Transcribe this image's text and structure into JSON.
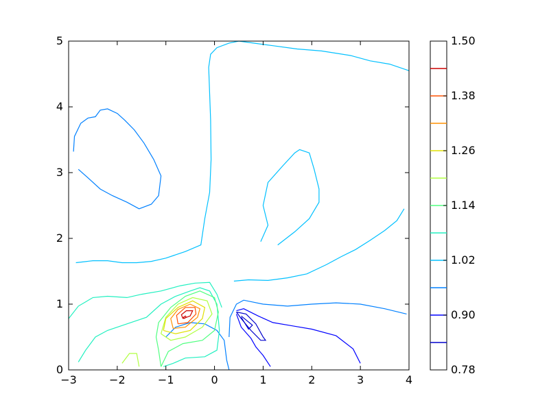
{
  "chart_data": {
    "type": "contour",
    "title": "",
    "xlabel": "",
    "ylabel": "",
    "xlim": [
      -3,
      4
    ],
    "ylim": [
      0,
      5
    ],
    "x_ticks": [
      -3,
      -2,
      -1,
      0,
      1,
      2,
      3,
      4
    ],
    "x_tick_labels": [
      "−3",
      "−2",
      "−1",
      "0",
      "1",
      "2",
      "3",
      "4"
    ],
    "y_ticks": [
      0,
      1,
      2,
      3,
      4,
      5
    ],
    "y_tick_labels": [
      "0",
      "1",
      "2",
      "3",
      "4",
      "5"
    ],
    "grid": false,
    "colormap": "jet",
    "colorbar": {
      "range": [
        0.78,
        1.5
      ],
      "tick_values": [
        0.78,
        0.9,
        1.02,
        1.14,
        1.26,
        1.38,
        1.5
      ],
      "tick_labels": [
        "0.78",
        "0.90",
        "1.02",
        "1.14",
        "1.26",
        "1.38",
        "1.50"
      ],
      "level_lines": [
        {
          "value": 0.84,
          "color": "#0000cc"
        },
        {
          "value": 0.9,
          "color": "#0000ff"
        },
        {
          "value": 0.96,
          "color": "#0080ff"
        },
        {
          "value": 1.02,
          "color": "#00c0ff"
        },
        {
          "value": 1.08,
          "color": "#20f0c0"
        },
        {
          "value": 1.14,
          "color": "#50ff80"
        },
        {
          "value": 1.2,
          "color": "#b0ff40"
        },
        {
          "value": 1.26,
          "color": "#e0e000"
        },
        {
          "value": 1.32,
          "color": "#ff9000"
        },
        {
          "value": 1.38,
          "color": "#ff5000"
        },
        {
          "value": 1.44,
          "color": "#cc0000"
        }
      ]
    },
    "contours": [
      {
        "level": 0.96,
        "color": "#0080ff",
        "points": [
          [
            -2.9,
            3.32
          ],
          [
            -2.88,
            3.55
          ],
          [
            -2.75,
            3.75
          ],
          [
            -2.6,
            3.83
          ],
          [
            -2.45,
            3.85
          ],
          [
            -2.35,
            3.95
          ],
          [
            -2.2,
            3.97
          ],
          [
            -2.0,
            3.9
          ],
          [
            -1.85,
            3.8
          ],
          [
            -1.65,
            3.65
          ],
          [
            -1.45,
            3.45
          ],
          [
            -1.25,
            3.2
          ],
          [
            -1.1,
            2.95
          ],
          [
            -1.15,
            2.65
          ],
          [
            -1.3,
            2.52
          ],
          [
            -1.55,
            2.45
          ],
          [
            -1.8,
            2.55
          ],
          [
            -2.1,
            2.65
          ],
          [
            -2.35,
            2.75
          ],
          [
            -2.6,
            2.92
          ],
          [
            -2.8,
            3.05
          ]
        ]
      },
      {
        "level": 1.02,
        "color": "#00c0ff",
        "points": [
          [
            -2.85,
            1.63
          ],
          [
            -2.5,
            1.66
          ],
          [
            -2.2,
            1.66
          ],
          [
            -1.9,
            1.63
          ],
          [
            -1.6,
            1.63
          ],
          [
            -1.3,
            1.65
          ],
          [
            -1.0,
            1.7
          ],
          [
            -0.6,
            1.8
          ],
          [
            -0.28,
            1.9
          ],
          [
            -0.2,
            2.3
          ],
          [
            -0.1,
            2.7
          ],
          [
            -0.07,
            3.2
          ],
          [
            -0.08,
            3.8
          ],
          [
            -0.1,
            4.2
          ],
          [
            -0.12,
            4.6
          ],
          [
            -0.08,
            4.8
          ],
          [
            0.05,
            4.9
          ],
          [
            0.3,
            4.97
          ],
          [
            0.5,
            5.0
          ],
          [
            0.8,
            4.97
          ],
          [
            1.2,
            4.93
          ],
          [
            1.7,
            4.88
          ],
          [
            2.2,
            4.85
          ],
          [
            2.8,
            4.78
          ],
          [
            3.2,
            4.7
          ],
          [
            3.6,
            4.65
          ],
          [
            4.0,
            4.55
          ]
        ]
      },
      {
        "level": 1.02,
        "color": "#00c0ff",
        "points": [
          [
            0.4,
            1.35
          ],
          [
            0.7,
            1.37
          ],
          [
            1.1,
            1.36
          ],
          [
            1.5,
            1.4
          ],
          [
            1.9,
            1.46
          ],
          [
            2.3,
            1.6
          ],
          [
            2.6,
            1.72
          ],
          [
            2.9,
            1.83
          ],
          [
            3.2,
            1.97
          ],
          [
            3.5,
            2.12
          ],
          [
            3.75,
            2.27
          ],
          [
            3.9,
            2.45
          ]
        ]
      },
      {
        "level": 1.02,
        "color": "#00c0ff",
        "points": [
          [
            0.95,
            1.95
          ],
          [
            1.1,
            2.2
          ],
          [
            1.0,
            2.5
          ],
          [
            1.1,
            2.85
          ],
          [
            1.4,
            3.1
          ],
          [
            1.65,
            3.3
          ],
          [
            1.75,
            3.35
          ],
          [
            1.95,
            3.3
          ],
          [
            2.05,
            3.05
          ],
          [
            2.15,
            2.75
          ],
          [
            2.15,
            2.55
          ],
          [
            1.95,
            2.3
          ],
          [
            1.65,
            2.1
          ],
          [
            1.3,
            1.9
          ]
        ]
      },
      {
        "level": 0.96,
        "color": "#0080ff",
        "points": [
          [
            0.3,
            0.5
          ],
          [
            0.32,
            0.8
          ],
          [
            0.45,
            1.0
          ],
          [
            0.6,
            1.06
          ],
          [
            1.0,
            1.0
          ],
          [
            1.5,
            0.97
          ],
          [
            2.0,
            1.0
          ],
          [
            2.5,
            1.02
          ],
          [
            3.0,
            1.0
          ],
          [
            3.5,
            0.93
          ],
          [
            3.95,
            0.85
          ]
        ]
      },
      {
        "level": 0.96,
        "color": "#0080ff",
        "points": [
          [
            -1.0,
            0.5
          ],
          [
            -0.8,
            0.65
          ],
          [
            -0.5,
            0.72
          ],
          [
            -0.2,
            0.7
          ],
          [
            0.05,
            0.6
          ],
          [
            0.2,
            0.45
          ],
          [
            0.25,
            0.15
          ],
          [
            0.3,
            0.0
          ]
        ]
      },
      {
        "level": 0.9,
        "color": "#0000ff",
        "points": [
          [
            0.45,
            0.9
          ],
          [
            0.6,
            0.93
          ],
          [
            0.9,
            0.82
          ],
          [
            1.2,
            0.72
          ],
          [
            1.6,
            0.67
          ],
          [
            2.0,
            0.62
          ],
          [
            2.5,
            0.52
          ],
          [
            2.85,
            0.32
          ],
          [
            3.0,
            0.1
          ]
        ]
      },
      {
        "level": 0.9,
        "color": "#0000ff",
        "points": [
          [
            0.45,
            0.85
          ],
          [
            0.55,
            0.65
          ],
          [
            0.75,
            0.48
          ],
          [
            0.85,
            0.35
          ],
          [
            1.0,
            0.22
          ],
          [
            1.15,
            0.05
          ]
        ]
      },
      {
        "level": 0.84,
        "color": "#0000cc",
        "points": [
          [
            0.45,
            0.88
          ],
          [
            0.65,
            0.85
          ],
          [
            0.85,
            0.7
          ],
          [
            1.0,
            0.5
          ],
          [
            1.05,
            0.45
          ],
          [
            0.95,
            0.45
          ],
          [
            0.75,
            0.6
          ],
          [
            0.55,
            0.78
          ],
          [
            0.45,
            0.88
          ]
        ]
      },
      {
        "level": 0.84,
        "color": "#0000cc",
        "points": [
          [
            0.55,
            0.82
          ],
          [
            0.78,
            0.68
          ],
          [
            0.7,
            0.62
          ],
          [
            0.55,
            0.8
          ]
        ]
      },
      {
        "level": 1.08,
        "color": "#20f0c0",
        "points": [
          [
            -3.0,
            0.78
          ],
          [
            -2.8,
            0.97
          ],
          [
            -2.5,
            1.1
          ],
          [
            -2.2,
            1.12
          ],
          [
            -1.8,
            1.1
          ],
          [
            -1.5,
            1.15
          ],
          [
            -1.1,
            1.2
          ],
          [
            -0.7,
            1.28
          ],
          [
            -0.4,
            1.32
          ],
          [
            -0.1,
            1.33
          ],
          [
            0.05,
            1.15
          ],
          [
            0.15,
            0.95
          ]
        ]
      },
      {
        "level": 1.08,
        "color": "#20f0c0",
        "points": [
          [
            -2.8,
            0.12
          ],
          [
            -2.65,
            0.3
          ],
          [
            -2.45,
            0.5
          ],
          [
            -2.2,
            0.6
          ],
          [
            -1.8,
            0.7
          ],
          [
            -1.4,
            0.8
          ],
          [
            -1.1,
            1.0
          ],
          [
            -0.8,
            1.12
          ],
          [
            -0.5,
            1.2
          ],
          [
            -0.3,
            1.25
          ],
          [
            -0.1,
            1.2
          ],
          [
            0.05,
            1.0
          ],
          [
            0.1,
            0.6
          ],
          [
            0.05,
            0.3
          ],
          [
            -0.2,
            0.2
          ],
          [
            -0.6,
            0.18
          ],
          [
            -0.85,
            0.1
          ],
          [
            -1.05,
            0.05
          ]
        ]
      },
      {
        "level": 1.14,
        "color": "#50ff80",
        "points": [
          [
            -1.1,
            0.05
          ],
          [
            -0.95,
            0.28
          ],
          [
            -0.65,
            0.4
          ],
          [
            -0.25,
            0.45
          ],
          [
            0.0,
            0.6
          ],
          [
            0.08,
            0.88
          ],
          [
            0.0,
            1.1
          ],
          [
            -0.3,
            1.2
          ],
          [
            -0.6,
            1.12
          ],
          [
            -0.9,
            0.95
          ],
          [
            -1.15,
            0.72
          ],
          [
            -1.2,
            0.5
          ],
          [
            -1.15,
            0.3
          ],
          [
            -1.1,
            0.05
          ]
        ]
      },
      {
        "level": 1.2,
        "color": "#b0ff40",
        "points": [
          [
            -1.9,
            0.1
          ],
          [
            -1.75,
            0.25
          ],
          [
            -1.6,
            0.25
          ],
          [
            -1.55,
            0.05
          ]
        ]
      },
      {
        "level": 1.2,
        "color": "#b0ff40",
        "points": [
          [
            -1.1,
            0.55
          ],
          [
            -0.9,
            0.45
          ],
          [
            -0.6,
            0.5
          ],
          [
            -0.25,
            0.65
          ],
          [
            -0.05,
            0.85
          ],
          [
            -0.15,
            1.05
          ],
          [
            -0.45,
            1.1
          ],
          [
            -0.75,
            1.0
          ],
          [
            -1.0,
            0.8
          ],
          [
            -1.1,
            0.55
          ]
        ]
      },
      {
        "level": 1.26,
        "color": "#e0e000",
        "points": [
          [
            -1.05,
            0.6
          ],
          [
            -0.8,
            0.55
          ],
          [
            -0.5,
            0.6
          ],
          [
            -0.25,
            0.78
          ],
          [
            -0.2,
            0.95
          ],
          [
            -0.45,
            1.05
          ],
          [
            -0.75,
            0.95
          ],
          [
            -1.0,
            0.78
          ],
          [
            -1.05,
            0.6
          ]
        ]
      },
      {
        "level": 1.32,
        "color": "#ff9000",
        "points": [
          [
            -0.85,
            0.63
          ],
          [
            -0.6,
            0.65
          ],
          [
            -0.35,
            0.8
          ],
          [
            -0.3,
            0.93
          ],
          [
            -0.5,
            1.0
          ],
          [
            -0.75,
            0.92
          ],
          [
            -0.9,
            0.78
          ],
          [
            -0.85,
            0.63
          ]
        ]
      },
      {
        "level": 1.38,
        "color": "#ff5000",
        "points": [
          [
            -0.75,
            0.7
          ],
          [
            -0.55,
            0.72
          ],
          [
            -0.38,
            0.85
          ],
          [
            -0.4,
            0.95
          ],
          [
            -0.6,
            0.95
          ],
          [
            -0.78,
            0.83
          ],
          [
            -0.75,
            0.7
          ]
        ]
      },
      {
        "level": 1.44,
        "color": "#cc0000",
        "points": [
          [
            -0.65,
            0.78
          ],
          [
            -0.5,
            0.82
          ],
          [
            -0.45,
            0.9
          ],
          [
            -0.58,
            0.9
          ],
          [
            -0.68,
            0.84
          ],
          [
            -0.65,
            0.78
          ]
        ]
      },
      {
        "level": 1.44,
        "color": "#cc0000",
        "points": [
          [
            -0.63,
            0.78
          ],
          [
            -0.58,
            0.8
          ],
          [
            -0.6,
            0.82
          ],
          [
            -0.64,
            0.8
          ],
          [
            -0.63,
            0.78
          ]
        ]
      }
    ]
  }
}
